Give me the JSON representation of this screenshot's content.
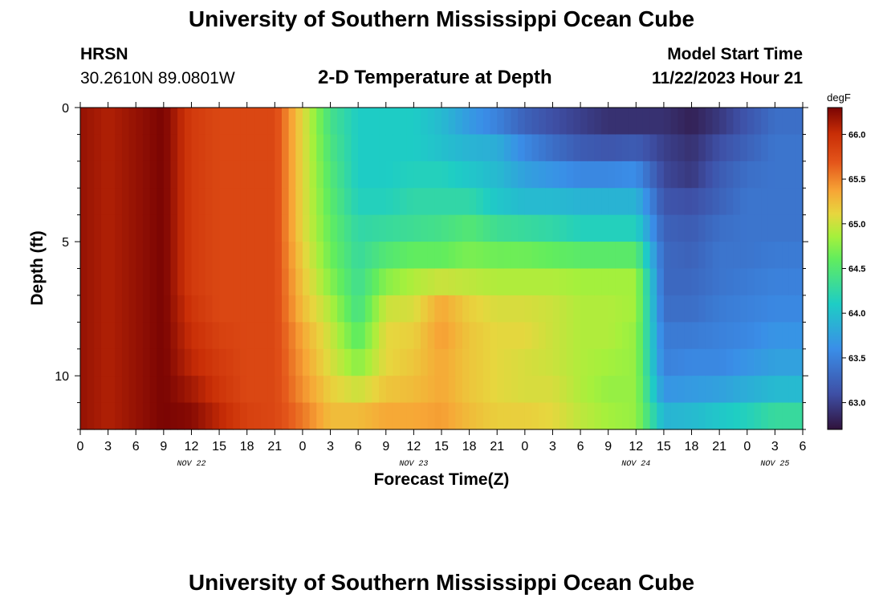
{
  "header": {
    "title": "University of Southern Mississippi Ocean Cube",
    "station": "HRSN",
    "coords": "30.2610N  89.0801W",
    "plot_title": "2-D Temperature at Depth",
    "start_label": "Model Start Time",
    "start_value": "11/22/2023 Hour 21"
  },
  "footer": {
    "title": "University of Southern Mississippi Ocean Cube"
  },
  "chart_data": {
    "type": "heatmap",
    "title": "2-D Temperature at Depth",
    "xlabel": "Forecast Time(Z)",
    "ylabel": "Depth (ft)",
    "x_tick_labels": [
      "0",
      "3",
      "6",
      "9",
      "12",
      "15",
      "18",
      "21",
      "0",
      "3",
      "6",
      "9",
      "12",
      "15",
      "18",
      "21",
      "0",
      "3",
      "6",
      "9",
      "12",
      "15",
      "18",
      "21",
      "0",
      "3",
      "6"
    ],
    "x_day_labels": [
      {
        "label": "NOV 22",
        "hours_from_start": 12
      },
      {
        "label": "NOV 23",
        "hours_from_start": 36
      },
      {
        "label": "NOV 24",
        "hours_from_start": 60
      },
      {
        "label": "NOV 25",
        "hours_from_start": 75
      }
    ],
    "xlim": [
      0,
      78
    ],
    "y_tick_labels": [
      "0",
      "5",
      "10"
    ],
    "ylim": [
      0,
      12
    ],
    "y_reversed": true,
    "colorbar": {
      "unit": "degF",
      "range": [
        62.7,
        66.3
      ],
      "ticks": [
        "63.0",
        "63.5",
        "64.0",
        "64.5",
        "65.0",
        "65.5",
        "66.0"
      ]
    },
    "time_hours": [
      0,
      3,
      6,
      9,
      12,
      15,
      18,
      21,
      24,
      27,
      30,
      33,
      36,
      39,
      42,
      45,
      48,
      51,
      54,
      57,
      60,
      63,
      66,
      69,
      72,
      75
    ],
    "depth_ft": [
      0,
      1,
      2,
      3,
      4,
      5,
      6,
      7,
      8,
      9,
      10,
      11,
      12
    ],
    "temperature_degF_by_time": [
      [
        66.2,
        66.2,
        66.2,
        66.2,
        66.2,
        66.2,
        66.2,
        66.2,
        66.2,
        66.2,
        66.2,
        66.2,
        66.2
      ],
      [
        66.1,
        66.1,
        66.1,
        66.1,
        66.1,
        66.1,
        66.1,
        66.1,
        66.1,
        66.1,
        66.1,
        66.1,
        66.1
      ],
      [
        66.2,
        66.2,
        66.2,
        66.2,
        66.2,
        66.2,
        66.2,
        66.2,
        66.2,
        66.2,
        66.2,
        66.2,
        66.2
      ],
      [
        66.3,
        66.3,
        66.3,
        66.3,
        66.3,
        66.3,
        66.3,
        66.3,
        66.3,
        66.3,
        66.3,
        66.3,
        66.3
      ],
      [
        65.9,
        65.9,
        65.9,
        65.9,
        65.9,
        65.9,
        65.9,
        65.9,
        66.0,
        66.0,
        66.1,
        66.2,
        66.3
      ],
      [
        65.8,
        65.8,
        65.8,
        65.8,
        65.8,
        65.8,
        65.8,
        65.8,
        65.8,
        65.9,
        65.9,
        66.0,
        66.1
      ],
      [
        65.8,
        65.8,
        65.8,
        65.8,
        65.8,
        65.8,
        65.8,
        65.8,
        65.8,
        65.8,
        65.8,
        65.8,
        65.9
      ],
      [
        65.8,
        65.8,
        65.8,
        65.8,
        65.8,
        65.8,
        65.8,
        65.8,
        65.8,
        65.8,
        65.8,
        65.8,
        65.8
      ],
      [
        65.1,
        65.1,
        65.1,
        65.1,
        65.1,
        65.1,
        65.2,
        65.2,
        65.3,
        65.4,
        65.4,
        65.5,
        65.6
      ],
      [
        64.4,
        64.4,
        64.5,
        64.5,
        64.6,
        64.6,
        64.7,
        64.8,
        65.0,
        65.0,
        65.1,
        65.2,
        65.3
      ],
      [
        64.1,
        64.1,
        64.1,
        64.1,
        64.2,
        64.3,
        64.3,
        64.4,
        64.4,
        64.7,
        64.8,
        65.2,
        65.3
      ],
      [
        64.1,
        64.1,
        64.1,
        64.1,
        64.2,
        64.4,
        64.6,
        64.9,
        65.1,
        65.1,
        65.1,
        65.3,
        65.4
      ],
      [
        64.1,
        64.1,
        64.1,
        64.2,
        64.3,
        64.4,
        64.8,
        65.0,
        65.1,
        65.2,
        65.2,
        65.3,
        65.4
      ],
      [
        64.0,
        63.9,
        64.1,
        64.2,
        64.3,
        64.5,
        64.7,
        65.3,
        65.4,
        65.4,
        65.3,
        65.4,
        65.4
      ],
      [
        63.6,
        63.8,
        64.0,
        64.1,
        64.4,
        64.6,
        64.8,
        65.1,
        65.2,
        65.2,
        65.2,
        65.2,
        65.3
      ],
      [
        63.3,
        63.7,
        64.0,
        63.9,
        64.2,
        64.5,
        64.8,
        65.0,
        65.1,
        65.1,
        65.1,
        65.1,
        65.2
      ],
      [
        63.1,
        63.4,
        63.7,
        63.8,
        64.1,
        64.5,
        64.8,
        65.0,
        65.1,
        65.1,
        65.0,
        65.1,
        65.2
      ],
      [
        63.0,
        63.2,
        63.5,
        63.8,
        64.1,
        64.4,
        64.8,
        65.0,
        65.0,
        65.0,
        65.0,
        65.1,
        65.1
      ],
      [
        62.9,
        63.1,
        63.3,
        63.8,
        64.0,
        64.3,
        64.8,
        64.9,
        64.9,
        64.9,
        64.9,
        64.9,
        65.0
      ],
      [
        62.8,
        63.0,
        63.3,
        63.8,
        64.0,
        64.3,
        64.8,
        64.9,
        64.9,
        64.9,
        64.8,
        64.8,
        64.9
      ],
      [
        62.8,
        63.0,
        63.4,
        63.8,
        64.0,
        64.3,
        64.8,
        64.9,
        64.8,
        64.8,
        64.8,
        64.8,
        64.8
      ],
      [
        62.8,
        63.0,
        63.0,
        63.1,
        63.2,
        63.3,
        63.3,
        63.3,
        63.4,
        63.5,
        63.5,
        63.8,
        64.0
      ],
      [
        62.7,
        62.9,
        62.9,
        63.0,
        63.2,
        63.2,
        63.3,
        63.3,
        63.4,
        63.5,
        63.6,
        63.8,
        64.1
      ],
      [
        62.9,
        63.0,
        63.2,
        63.2,
        63.3,
        63.4,
        63.4,
        63.4,
        63.5,
        63.5,
        63.6,
        63.9,
        64.2
      ],
      [
        63.1,
        63.2,
        63.3,
        63.4,
        63.4,
        63.4,
        63.4,
        63.5,
        63.5,
        63.6,
        63.7,
        64.0,
        64.3
      ],
      [
        63.3,
        63.4,
        63.4,
        63.4,
        63.4,
        63.4,
        63.5,
        63.5,
        63.6,
        63.7,
        63.8,
        64.1,
        64.5
      ]
    ]
  }
}
